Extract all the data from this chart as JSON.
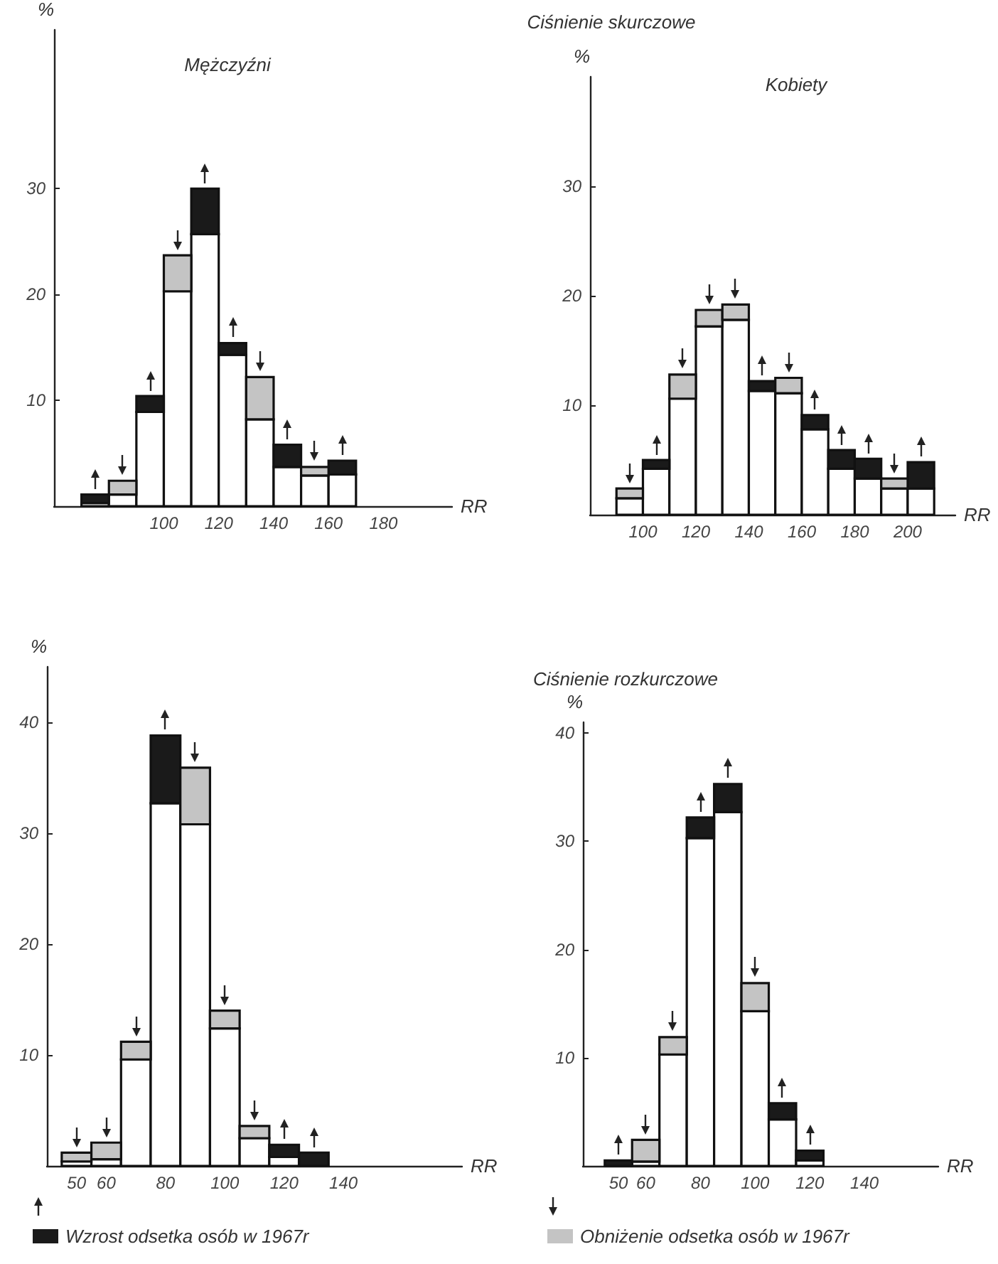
{
  "chart_data": [
    {
      "type": "bar",
      "title": "Mężczyźni",
      "xlabel": "RR",
      "ylabel": "%",
      "stacked": true,
      "x": [
        75,
        85,
        95,
        105,
        115,
        125,
        135,
        145,
        155,
        165
      ],
      "series": [
        {
          "color": "#ffffff",
          "values": [
            0.3,
            1.1,
            8.9,
            20.3,
            25.7,
            14.3,
            8.2,
            3.7,
            2.9,
            3.0
          ]
        },
        {
          "color": "#1a1a1a",
          "values": [
            0.8,
            null,
            1.5,
            null,
            4.3,
            1.1,
            null,
            2.1,
            null,
            1.3
          ]
        },
        {
          "color": "#c4c4c4",
          "values": [
            null,
            1.3,
            null,
            3.4,
            null,
            null,
            4.0,
            null,
            0.8,
            null
          ]
        }
      ],
      "xlim": [
        60,
        205
      ],
      "ylim": [
        0,
        45
      ],
      "xticks": [
        100,
        120,
        140,
        160,
        180
      ],
      "yticks": [
        10,
        20,
        30
      ]
    },
    {
      "type": "bar",
      "title": "Ciśnienie skurczowe",
      "subtitle": "Kobiety",
      "xlabel": "RR",
      "ylabel": "%",
      "stacked": true,
      "x": [
        95,
        105,
        115,
        125,
        135,
        145,
        155,
        165,
        175,
        185,
        195,
        205
      ],
      "series": [
        {
          "color": "#ffffff",
          "values": [
            1.5,
            4.2,
            10.6,
            17.2,
            17.8,
            11.3,
            11.1,
            7.8,
            4.2,
            3.3,
            2.4,
            2.4
          ]
        },
        {
          "color": "#1a1a1a",
          "values": [
            null,
            0.8,
            null,
            null,
            null,
            0.9,
            null,
            1.3,
            1.7,
            1.8,
            null,
            2.4
          ]
        },
        {
          "color": "#c4c4c4",
          "values": [
            0.9,
            null,
            2.2,
            1.5,
            1.4,
            null,
            1.4,
            null,
            null,
            null,
            0.9,
            null
          ]
        }
      ],
      "xlim": [
        80,
        218
      ],
      "ylim": [
        0,
        40
      ],
      "xticks": [
        100,
        120,
        140,
        160,
        180,
        200
      ],
      "yticks": [
        10,
        20,
        30
      ]
    },
    {
      "type": "bar",
      "xlabel": "RR",
      "ylabel": "%",
      "stacked": true,
      "legend": "bottom",
      "x": [
        50,
        60,
        70,
        80,
        90,
        100,
        110,
        120,
        130
      ],
      "series": [
        {
          "color": "#ffffff",
          "values": [
            0.4,
            0.6,
            9.6,
            32.7,
            30.8,
            12.4,
            2.5,
            0.8,
            null
          ]
        },
        {
          "name": "Wzrost odsetka osób w 1967r",
          "color": "#1a1a1a",
          "values": [
            null,
            null,
            null,
            6.1,
            null,
            null,
            null,
            1.1,
            1.2
          ]
        },
        {
          "color": "#c4c4c4",
          "values": [
            0.8,
            1.5,
            1.6,
            null,
            5.1,
            1.6,
            1.1,
            null,
            null
          ]
        }
      ],
      "xlim": [
        40,
        180
      ],
      "ylim": [
        0,
        45
      ],
      "xticks": [
        50,
        60,
        80,
        100,
        120,
        140
      ],
      "yticks": [
        10,
        20,
        30,
        40
      ]
    },
    {
      "type": "bar",
      "title": "Ciśnienie rozkurczowe",
      "xlabel": "RR",
      "ylabel": "%",
      "stacked": true,
      "legend": "bottom",
      "x": [
        50,
        60,
        70,
        80,
        90,
        100,
        110,
        120
      ],
      "series": [
        {
          "color": "#ffffff",
          "values": [
            0,
            0.4,
            10.3,
            30.3,
            32.7,
            14.3,
            4.3,
            0.5
          ]
        },
        {
          "color": "#1a1a1a",
          "values": [
            0.5,
            null,
            null,
            1.9,
            2.6,
            null,
            1.5,
            0.9
          ]
        },
        {
          "name": "Obniżenie odsetka osób w 1967r",
          "color": "#c4c4c4",
          "values": [
            null,
            2.0,
            1.6,
            null,
            null,
            2.6,
            null,
            null
          ]
        }
      ],
      "xlim": [
        37,
        167
      ],
      "ylim": [
        0,
        41
      ],
      "xticks": [
        50,
        60,
        80,
        100,
        120,
        140
      ],
      "yticks": [
        10,
        20,
        30,
        40
      ]
    }
  ]
}
